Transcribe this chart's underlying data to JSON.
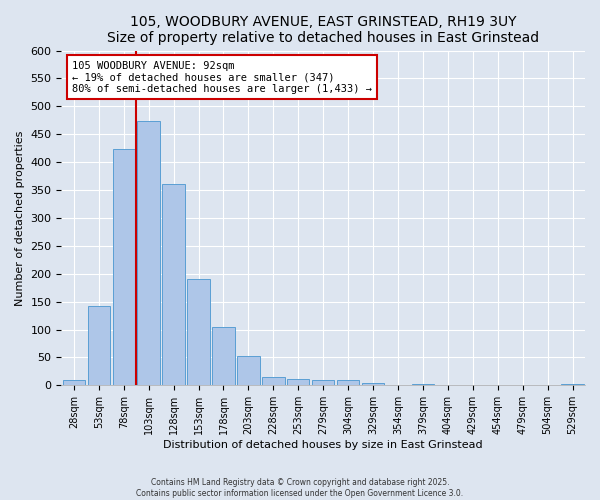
{
  "title": "105, WOODBURY AVENUE, EAST GRINSTEAD, RH19 3UY",
  "subtitle": "Size of property relative to detached houses in East Grinstead",
  "xlabel": "Distribution of detached houses by size in East Grinstead",
  "ylabel": "Number of detached properties",
  "bin_labels": [
    "28sqm",
    "53sqm",
    "78sqm",
    "103sqm",
    "128sqm",
    "153sqm",
    "178sqm",
    "203sqm",
    "228sqm",
    "253sqm",
    "279sqm",
    "304sqm",
    "329sqm",
    "354sqm",
    "379sqm",
    "404sqm",
    "429sqm",
    "454sqm",
    "479sqm",
    "504sqm",
    "529sqm"
  ],
  "bar_values": [
    9,
    143,
    423,
    473,
    360,
    191,
    105,
    53,
    15,
    12,
    9,
    9,
    4,
    1,
    3,
    1,
    1,
    0,
    0,
    0,
    3
  ],
  "bar_color": "#aec6e8",
  "bar_edgecolor": "#5a9fd4",
  "annotation_title": "105 WOODBURY AVENUE: 92sqm",
  "annotation_line1": "← 19% of detached houses are smaller (347)",
  "annotation_line2": "80% of semi-detached houses are larger (1,433) →",
  "annotation_box_color": "#ffffff",
  "annotation_box_edgecolor": "#cc0000",
  "vline_color": "#cc0000",
  "ylim": [
    0,
    600
  ],
  "yticks": [
    0,
    50,
    100,
    150,
    200,
    250,
    300,
    350,
    400,
    450,
    500,
    550,
    600
  ],
  "background_color": "#dde5f0",
  "footer1": "Contains HM Land Registry data © Crown copyright and database right 2025.",
  "footer2": "Contains public sector information licensed under the Open Government Licence 3.0."
}
